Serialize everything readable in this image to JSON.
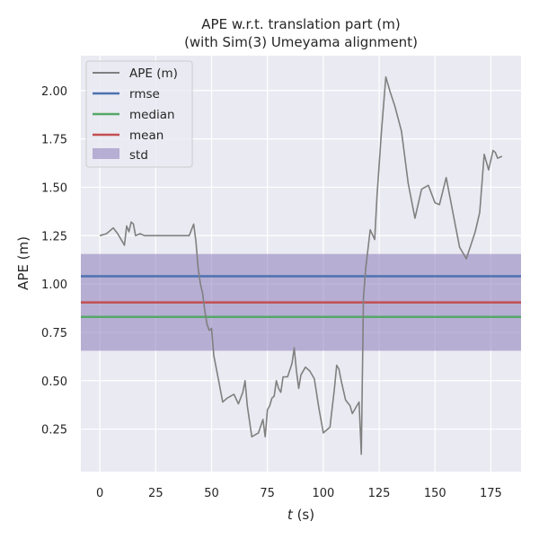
{
  "chart_data": {
    "type": "line",
    "title": "APE w.r.t. translation part (m)",
    "subtitle": "(with Sim(3) Umeyama alignment)",
    "xlabel_var": "t",
    "xlabel_unit": " (s)",
    "ylabel": "APE (m)",
    "xlim": [
      -8.5,
      188.5
    ],
    "ylim": [
      0.03,
      2.18
    ],
    "xticks": [
      0,
      25,
      50,
      75,
      100,
      125,
      150,
      175
    ],
    "yticks": [
      0.25,
      0.5,
      0.75,
      1.0,
      1.25,
      1.5,
      1.75,
      2.0
    ],
    "ytick_labels": [
      "0.25",
      "0.50",
      "0.75",
      "1.00",
      "1.25",
      "1.50",
      "1.75",
      "2.00"
    ],
    "grid": true,
    "legend_position": "top-left",
    "legend": [
      "APE (m)",
      "rmse",
      "median",
      "mean",
      "std"
    ],
    "colors": {
      "ape": "#808080",
      "rmse": "#4c72b0",
      "median": "#55a868",
      "mean": "#c44e52",
      "std": "#8172b3",
      "axes_bg": "#eaeaf2",
      "grid": "#ffffff"
    },
    "stats": {
      "rmse": 1.04,
      "median": 0.83,
      "mean": 0.905,
      "std_range": [
        0.655,
        1.155
      ]
    },
    "series": [
      {
        "name": "APE (m)",
        "x": [
          0,
          3,
          6,
          8,
          10,
          11,
          12,
          13,
          14,
          15,
          16,
          18,
          20,
          25,
          30,
          35,
          40,
          42,
          43,
          44,
          45,
          46,
          47,
          48,
          49,
          50,
          51,
          53,
          55,
          57,
          60,
          62,
          64,
          65,
          66,
          68,
          71,
          73,
          74,
          75,
          76,
          77,
          78,
          79,
          80,
          81,
          82,
          84,
          86,
          87,
          88,
          89,
          90,
          92,
          94,
          96,
          98,
          100,
          103,
          105,
          106,
          107,
          108,
          110,
          112,
          113,
          114,
          116,
          117,
          118,
          119,
          121,
          123,
          124,
          126,
          128,
          130,
          132,
          135,
          138,
          141,
          144,
          147,
          150,
          152,
          155,
          158,
          161,
          164,
          168,
          170,
          172,
          174,
          176,
          177,
          178,
          180
        ],
        "y": [
          1.25,
          1.26,
          1.29,
          1.26,
          1.22,
          1.2,
          1.3,
          1.27,
          1.32,
          1.31,
          1.25,
          1.26,
          1.25,
          1.25,
          1.25,
          1.25,
          1.25,
          1.31,
          1.22,
          1.08,
          1.0,
          0.95,
          0.86,
          0.79,
          0.76,
          0.77,
          0.63,
          0.51,
          0.39,
          0.41,
          0.43,
          0.38,
          0.44,
          0.5,
          0.37,
          0.21,
          0.23,
          0.3,
          0.21,
          0.35,
          0.37,
          0.41,
          0.42,
          0.5,
          0.46,
          0.44,
          0.52,
          0.52,
          0.59,
          0.67,
          0.55,
          0.46,
          0.53,
          0.57,
          0.55,
          0.51,
          0.36,
          0.23,
          0.26,
          0.46,
          0.58,
          0.56,
          0.5,
          0.4,
          0.37,
          0.33,
          0.35,
          0.39,
          0.12,
          0.93,
          1.08,
          1.28,
          1.23,
          1.45,
          1.78,
          2.07,
          1.99,
          1.92,
          1.79,
          1.52,
          1.34,
          1.49,
          1.51,
          1.42,
          1.41,
          1.55,
          1.37,
          1.19,
          1.13,
          1.27,
          1.37,
          1.67,
          1.59,
          1.69,
          1.68,
          1.65,
          1.66
        ]
      }
    ]
  }
}
